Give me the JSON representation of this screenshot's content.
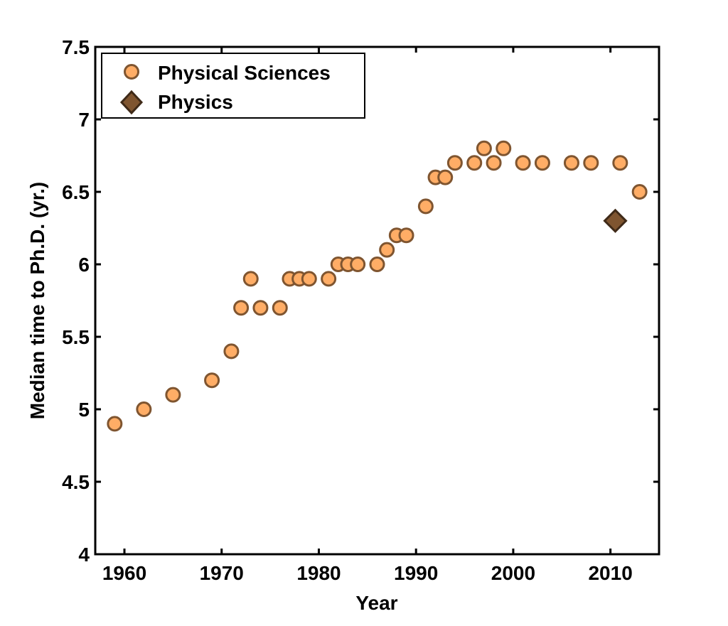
{
  "chart_data": {
    "type": "scatter",
    "title": "",
    "xlabel": "Year",
    "ylabel": "Median time to Ph.D. (yr.)",
    "xlim": [
      1957,
      2015
    ],
    "ylim": [
      4,
      7.5
    ],
    "xticks": [
      1960,
      1970,
      1980,
      1990,
      2000,
      2010
    ],
    "yticks": [
      4,
      4.5,
      5,
      5.5,
      6,
      6.5,
      7,
      7.5
    ],
    "xtick_labels": [
      "1960",
      "1970",
      "1980",
      "1990",
      "2000",
      "2010"
    ],
    "ytick_labels": [
      "4",
      "4.5",
      "5",
      "5.5",
      "6",
      "6.5",
      "7",
      "7.5"
    ],
    "grid": false,
    "legend_placement": "top-left",
    "series": [
      {
        "name": "Physical Sciences",
        "marker": "circle",
        "color": "#FFAD66",
        "edge_color": "#7F5530",
        "x": [
          1959,
          1962,
          1965,
          1969,
          1971,
          1972,
          1973,
          1974,
          1976,
          1977,
          1978,
          1979,
          1981,
          1982,
          1983,
          1984,
          1986,
          1987,
          1988,
          1989,
          1991,
          1992,
          1993,
          1994,
          1996,
          1997,
          1998,
          1999,
          2001,
          2003,
          2006,
          2008,
          2011,
          2013
        ],
        "y": [
          4.9,
          5.0,
          5.1,
          5.2,
          5.4,
          5.7,
          5.9,
          5.7,
          5.7,
          5.9,
          5.9,
          5.9,
          5.9,
          6.0,
          6.0,
          6.0,
          6.0,
          6.1,
          6.2,
          6.2,
          6.4,
          6.6,
          6.6,
          6.7,
          6.7,
          6.8,
          6.7,
          6.8,
          6.7,
          6.7,
          6.7,
          6.7,
          6.7,
          6.5
        ]
      },
      {
        "name": "Physics",
        "marker": "diamond",
        "color": "#7F5530",
        "edge_color": "#3F2A18",
        "x": [
          2010.5
        ],
        "y": [
          6.3
        ]
      }
    ]
  }
}
